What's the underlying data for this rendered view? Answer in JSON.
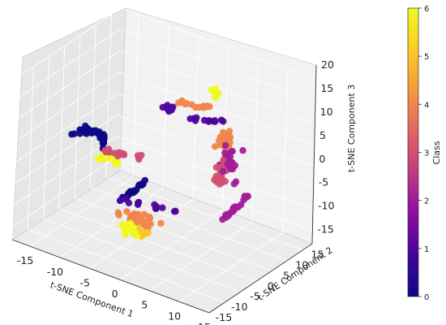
{
  "chart_data": {
    "type": "scatter",
    "projection": "3d",
    "title": "",
    "xlabel": "t-SNE Component 1",
    "ylabel": "t-SNE Component 2",
    "zlabel": "t-SNE Component 3",
    "xlim": [
      -18,
      15
    ],
    "ylim": [
      -15,
      18
    ],
    "zlim": [
      -18,
      20
    ],
    "xticks": [
      "-15",
      "-10",
      "-5",
      "0",
      "5",
      "10",
      "15"
    ],
    "yticks": [
      "-15",
      "-10",
      "-5",
      "0",
      "5",
      "10",
      "15"
    ],
    "zticks": [
      "-15",
      "-10",
      "-5",
      "0",
      "5",
      "10",
      "15",
      "20"
    ],
    "grid": true,
    "colormap": "plasma",
    "colorbar": {
      "label": "Class",
      "range": [
        0,
        6
      ],
      "ticks": [
        "0",
        "1",
        "2",
        "3",
        "4",
        "5",
        "6"
      ],
      "placement": "right"
    },
    "clusters": [
      {
        "class": 0,
        "x": -14,
        "y": 0,
        "z": 0,
        "n": 45,
        "spread": [
          2.5,
          3.5,
          1.5
        ],
        "shape": "arc"
      },
      {
        "class": 0,
        "x": -6,
        "y": 0,
        "z": -8,
        "n": 25,
        "spread": [
          1.0,
          3.0,
          3.0
        ],
        "shape": "line"
      },
      {
        "class": 1,
        "x": -1,
        "y": 1,
        "z": 14,
        "n": 10,
        "spread": [
          1.0,
          1.0,
          1.5
        ],
        "shape": "blob"
      },
      {
        "class": 1,
        "x": 3,
        "y": 7,
        "z": 10,
        "n": 12,
        "spread": [
          3.0,
          1.0,
          1.0
        ],
        "shape": "line"
      },
      {
        "class": 1,
        "x": 0,
        "y": -8,
        "z": -4,
        "n": 14,
        "spread": [
          5.0,
          1.0,
          1.0
        ],
        "shape": "line"
      },
      {
        "class": 2,
        "x": 7,
        "y": 6,
        "z": 3,
        "n": 25,
        "spread": [
          2.0,
          2.0,
          5.0
        ],
        "shape": "blob"
      },
      {
        "class": 2,
        "x": 9,
        "y": 4,
        "z": -6,
        "n": 25,
        "spread": [
          1.5,
          2.0,
          5.0
        ],
        "shape": "line"
      },
      {
        "class": 3,
        "x": -8,
        "y": 0,
        "z": 0,
        "n": 20,
        "spread": [
          3.0,
          1.0,
          1.0
        ],
        "shape": "line"
      },
      {
        "class": 3,
        "x": 6,
        "y": 5,
        "z": 0,
        "n": 18,
        "spread": [
          1.5,
          1.5,
          4.0
        ],
        "shape": "blob"
      },
      {
        "class": 4,
        "x": -4,
        "y": -2,
        "z": -12,
        "n": 30,
        "spread": [
          4.0,
          2.0,
          2.0
        ],
        "shape": "blob"
      },
      {
        "class": 4,
        "x": 5,
        "y": 8,
        "z": 6,
        "n": 20,
        "spread": [
          2.0,
          2.0,
          3.0
        ],
        "shape": "blob"
      },
      {
        "class": 4,
        "x": 0,
        "y": 7,
        "z": 12,
        "n": 14,
        "spread": [
          3.0,
          1.0,
          1.0
        ],
        "shape": "line"
      },
      {
        "class": 5,
        "x": -3,
        "y": -3,
        "z": -14,
        "n": 14,
        "spread": [
          2.0,
          1.5,
          1.5
        ],
        "shape": "blob"
      },
      {
        "class": 6,
        "x": -11,
        "y": 1,
        "z": -3,
        "n": 14,
        "spread": [
          3.0,
          1.5,
          1.5
        ],
        "shape": "blob"
      },
      {
        "class": 6,
        "x": -4,
        "y": -4,
        "z": -14,
        "n": 25,
        "spread": [
          2.0,
          2.0,
          2.0
        ],
        "shape": "blob"
      },
      {
        "class": 6,
        "x": 2,
        "y": 10,
        "z": 14,
        "n": 10,
        "spread": [
          1.0,
          1.0,
          1.5
        ],
        "shape": "blob"
      }
    ]
  }
}
